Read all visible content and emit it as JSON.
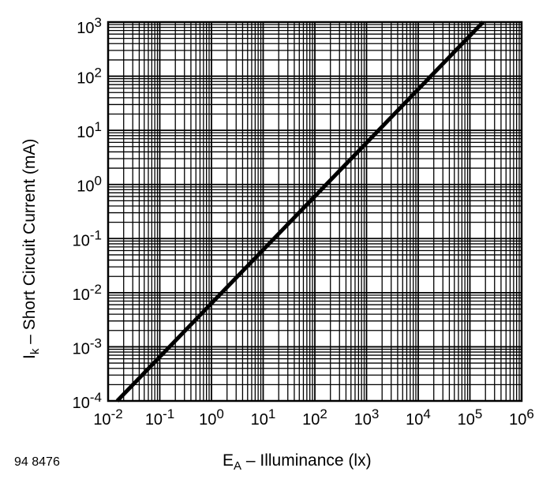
{
  "chart_data": {
    "type": "line",
    "title": "",
    "xlabel": {
      "main": "E",
      "sub": "A",
      "rest": " – Illuminance (lx)"
    },
    "ylabel": {
      "main": "I",
      "sub": "k",
      "rest": " – Short Circuit Current (mA)"
    },
    "x_scale": "log",
    "y_scale": "log",
    "xlim": [
      0.01,
      1000000
    ],
    "ylim": [
      0.0001,
      1000
    ],
    "grid": true,
    "x_ticks": [
      {
        "base": "10",
        "exp": "-2"
      },
      {
        "base": "10",
        "exp": "-1"
      },
      {
        "base": "10",
        "exp": "0"
      },
      {
        "base": "10",
        "exp": "1"
      },
      {
        "base": "10",
        "exp": "2"
      },
      {
        "base": "10",
        "exp": "3"
      },
      {
        "base": "10",
        "exp": "4"
      },
      {
        "base": "10",
        "exp": "5"
      },
      {
        "base": "10",
        "exp": "6"
      }
    ],
    "y_ticks": [
      {
        "base": "10",
        "exp": "-4"
      },
      {
        "base": "10",
        "exp": "-3"
      },
      {
        "base": "10",
        "exp": "-2"
      },
      {
        "base": "10",
        "exp": "-1"
      },
      {
        "base": "10",
        "exp": "0"
      },
      {
        "base": "10",
        "exp": "1"
      },
      {
        "base": "10",
        "exp": "2"
      },
      {
        "base": "10",
        "exp": "3"
      }
    ],
    "series": [
      {
        "x": [
          0.015,
          180000
        ],
        "y": [
          0.0001,
          1000
        ],
        "color": "#000000"
      }
    ]
  },
  "figure_code": "94 8476"
}
